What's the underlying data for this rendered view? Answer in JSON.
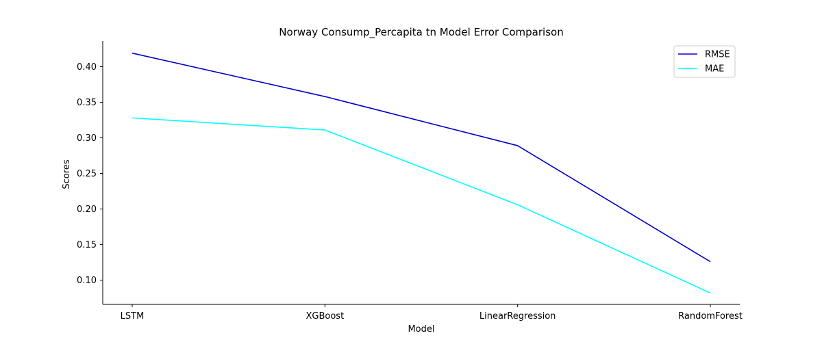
{
  "chart_data": {
    "type": "line",
    "title": "Norway Consump_Percapita tn Model Error Comparison",
    "xlabel": "Model",
    "ylabel": "Scores",
    "categories": [
      "LSTM",
      "XGBoost",
      "LinearRegression",
      "RandomForest"
    ],
    "series": [
      {
        "name": "RMSE",
        "color": "#0000cd",
        "values": [
          0.419,
          0.358,
          0.289,
          0.126
        ]
      },
      {
        "name": "MAE",
        "color": "#00ffff",
        "values": [
          0.328,
          0.311,
          0.206,
          0.082
        ]
      }
    ],
    "ylim": [
      0.066,
      0.436
    ],
    "yticks": [
      "0.10",
      "0.15",
      "0.20",
      "0.25",
      "0.30",
      "0.35",
      "0.40"
    ],
    "legend_position": "top-right",
    "grid": false
  }
}
